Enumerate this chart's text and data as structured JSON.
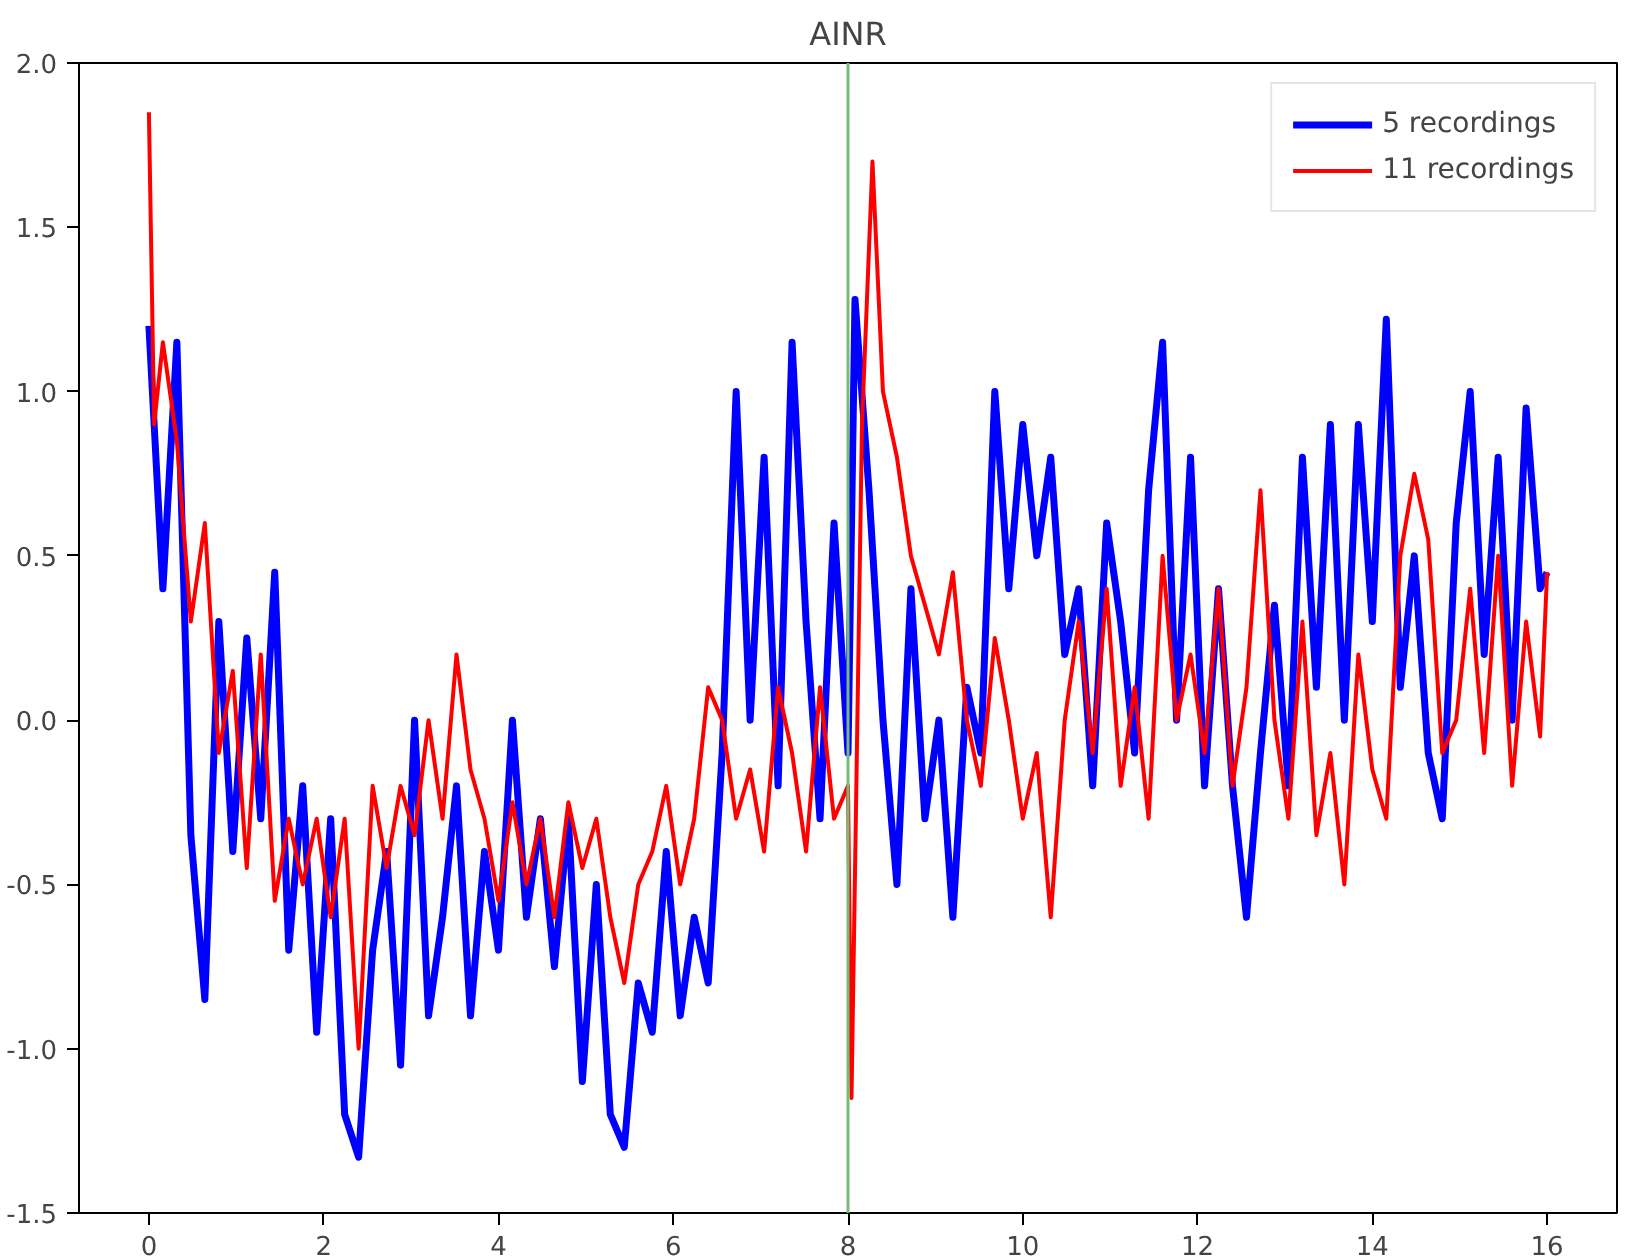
{
  "chart_data": {
    "type": "line",
    "title": "AINR",
    "xlim": [
      -0.8,
      16.8
    ],
    "ylim": [
      -1.5,
      2.0
    ],
    "xticks": [
      0,
      2,
      4,
      6,
      8,
      10,
      12,
      14,
      16
    ],
    "yticks": [
      {
        "value": -1.5,
        "label": "-1.5"
      },
      {
        "value": -1.0,
        "label": "-1.0"
      },
      {
        "value": -0.5,
        "label": "-0.5"
      },
      {
        "value": 0.0,
        "label": "0.0"
      },
      {
        "value": 0.5,
        "label": "0.5"
      },
      {
        "value": 1.0,
        "label": "1.0"
      },
      {
        "value": 1.5,
        "label": "1.5"
      },
      {
        "value": 2.0,
        "label": "2.0"
      }
    ],
    "grid": false,
    "legend": "top right",
    "marker": "none",
    "line_style": "solid",
    "ref_lines": [
      {
        "axis": "x",
        "value": 8,
        "color": "#77bb77"
      }
    ],
    "series": [
      {
        "name": "5 recordings",
        "color": "#0000ff",
        "x": [
          0,
          0.16,
          0.32,
          0.48,
          0.64,
          0.8,
          0.96,
          1.12,
          1.28,
          1.44,
          1.6,
          1.76,
          1.92,
          2.08,
          2.24,
          2.4,
          2.56,
          2.72,
          2.88,
          3.04,
          3.2,
          3.36,
          3.52,
          3.68,
          3.84,
          4.0,
          4.16,
          4.32,
          4.48,
          4.64,
          4.8,
          4.96,
          5.12,
          5.28,
          5.44,
          5.6,
          5.76,
          5.92,
          6.08,
          6.24,
          6.4,
          6.56,
          6.72,
          6.88,
          7.04,
          7.2,
          7.36,
          7.52,
          7.68,
          7.84,
          8.0,
          8.08,
          8.24,
          8.4,
          8.56,
          8.72,
          8.88,
          9.04,
          9.2,
          9.36,
          9.52,
          9.68,
          9.84,
          10.0,
          10.16,
          10.32,
          10.48,
          10.64,
          10.8,
          10.96,
          11.12,
          11.28,
          11.44,
          11.6,
          11.76,
          11.92,
          12.08,
          12.24,
          12.4,
          12.56,
          12.72,
          12.88,
          13.04,
          13.2,
          13.36,
          13.52,
          13.68,
          13.84,
          14.0,
          14.16,
          14.32,
          14.48,
          14.64,
          14.8,
          14.96,
          15.12,
          15.28,
          15.44,
          15.6,
          15.76,
          15.92,
          16.0
        ],
        "values": [
          1.2,
          0.4,
          1.15,
          -0.35,
          -0.85,
          0.3,
          -0.4,
          0.25,
          -0.3,
          0.45,
          -0.7,
          -0.2,
          -0.95,
          -0.3,
          -1.2,
          -1.33,
          -0.7,
          -0.4,
          -1.05,
          0.0,
          -0.9,
          -0.6,
          -0.2,
          -0.9,
          -0.4,
          -0.7,
          0.0,
          -0.6,
          -0.3,
          -0.75,
          -0.3,
          -1.1,
          -0.5,
          -1.2,
          -1.3,
          -0.8,
          -0.95,
          -0.4,
          -0.9,
          -0.6,
          -0.8,
          -0.1,
          1.0,
          0.0,
          0.8,
          -0.2,
          1.15,
          0.3,
          -0.3,
          0.6,
          -0.1,
          1.28,
          0.7,
          0.0,
          -0.5,
          0.4,
          -0.3,
          0.0,
          -0.6,
          0.1,
          -0.1,
          1.0,
          0.4,
          0.9,
          0.5,
          0.8,
          0.2,
          0.4,
          -0.2,
          0.6,
          0.3,
          -0.1,
          0.7,
          1.15,
          0.0,
          0.8,
          -0.2,
          0.4,
          -0.2,
          -0.6,
          -0.1,
          0.35,
          -0.2,
          0.8,
          0.1,
          0.9,
          0.0,
          0.9,
          0.3,
          1.22,
          0.1,
          0.5,
          -0.1,
          -0.3,
          0.6,
          1.0,
          0.2,
          0.8,
          0.0,
          0.95,
          0.4,
          0.45
        ]
      },
      {
        "name": "11 recordings",
        "color": "#ff0000",
        "x": [
          0,
          0.06,
          0.16,
          0.32,
          0.48,
          0.64,
          0.8,
          0.96,
          1.12,
          1.28,
          1.44,
          1.6,
          1.76,
          1.92,
          2.08,
          2.24,
          2.4,
          2.56,
          2.72,
          2.88,
          3.04,
          3.2,
          3.36,
          3.52,
          3.68,
          3.84,
          4.0,
          4.16,
          4.32,
          4.48,
          4.64,
          4.8,
          4.96,
          5.12,
          5.28,
          5.44,
          5.6,
          5.76,
          5.92,
          6.08,
          6.24,
          6.4,
          6.56,
          6.72,
          6.88,
          7.04,
          7.2,
          7.36,
          7.52,
          7.68,
          7.84,
          8.0,
          8.04,
          8.16,
          8.28,
          8.4,
          8.56,
          8.72,
          8.88,
          9.04,
          9.2,
          9.36,
          9.52,
          9.68,
          9.84,
          10.0,
          10.16,
          10.32,
          10.48,
          10.64,
          10.8,
          10.96,
          11.12,
          11.28,
          11.44,
          11.6,
          11.76,
          11.92,
          12.08,
          12.24,
          12.4,
          12.56,
          12.72,
          12.88,
          13.04,
          13.2,
          13.36,
          13.52,
          13.68,
          13.84,
          14.0,
          14.16,
          14.32,
          14.48,
          14.64,
          14.8,
          14.96,
          15.12,
          15.28,
          15.44,
          15.6,
          15.76,
          15.92,
          16.0
        ],
        "values": [
          1.85,
          0.9,
          1.15,
          0.85,
          0.3,
          0.6,
          -0.1,
          0.15,
          -0.45,
          0.2,
          -0.55,
          -0.3,
          -0.5,
          -0.3,
          -0.6,
          -0.3,
          -1.0,
          -0.2,
          -0.45,
          -0.2,
          -0.35,
          0.0,
          -0.3,
          0.2,
          -0.15,
          -0.3,
          -0.55,
          -0.25,
          -0.5,
          -0.3,
          -0.6,
          -0.25,
          -0.45,
          -0.3,
          -0.6,
          -0.8,
          -0.5,
          -0.4,
          -0.2,
          -0.5,
          -0.3,
          0.1,
          0.0,
          -0.3,
          -0.15,
          -0.4,
          0.1,
          -0.1,
          -0.4,
          0.1,
          -0.3,
          -0.2,
          -1.15,
          0.9,
          1.7,
          1.0,
          0.8,
          0.5,
          0.35,
          0.2,
          0.45,
          0.0,
          -0.2,
          0.25,
          0.0,
          -0.3,
          -0.1,
          -0.6,
          0.0,
          0.3,
          -0.1,
          0.4,
          -0.2,
          0.1,
          -0.3,
          0.5,
          0.0,
          0.2,
          -0.1,
          0.4,
          -0.2,
          0.1,
          0.7,
          0.0,
          -0.3,
          0.3,
          -0.35,
          -0.1,
          -0.5,
          0.2,
          -0.15,
          -0.3,
          0.5,
          0.75,
          0.55,
          -0.1,
          0.0,
          0.4,
          -0.1,
          0.5,
          -0.2,
          0.3,
          -0.05,
          0.45
        ]
      }
    ]
  }
}
